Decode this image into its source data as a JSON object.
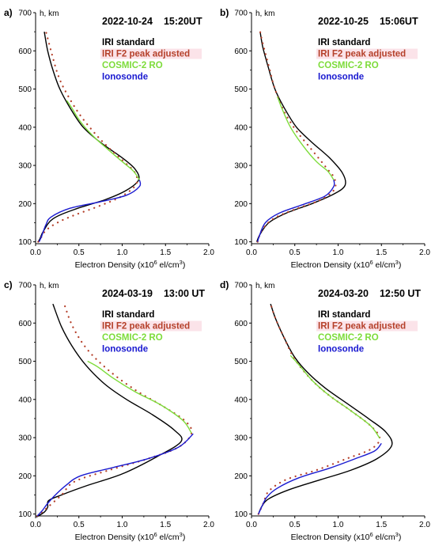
{
  "colors": {
    "iri_standard": "#000000",
    "iri_f2_adjusted": "#b5402a",
    "cosmic": "#7ddc3a",
    "ionosonde": "#1a1ad0"
  },
  "shared": {
    "x_label_prefix": "Electron Density",
    "x_label_unit": "(x10",
    "x_label_exp": "6",
    "x_label_unit2": " el/cm",
    "x_label_exp2": "3",
    "x_label_close": ")",
    "y_label": "h, km"
  },
  "chart_data": [
    {
      "type": "line",
      "panel_label": "a)",
      "title_date": "2022-10-24",
      "title_time": "15:20UT",
      "xlim": [
        0,
        2.0
      ],
      "ylim": [
        95,
        700
      ],
      "x_ticks": [
        "0.0",
        "0.5",
        "1.0",
        "1.5",
        "2.0"
      ],
      "y_ticks": [
        "100",
        "200",
        "300",
        "400",
        "500",
        "600",
        "700"
      ],
      "legend": [
        "IRI standard",
        "IRI F2 peak adjusted",
        "COSMIC-2 RO",
        "Ionosonde"
      ],
      "series": [
        {
          "name": "IRI standard",
          "style": "solid",
          "color": "#000000",
          "points": [
            [
              0.03,
              100
            ],
            [
              0.05,
              108
            ],
            [
              0.09,
              128
            ],
            [
              0.2,
              160
            ],
            [
              0.45,
              185
            ],
            [
              0.8,
              210
            ],
            [
              1.05,
              235
            ],
            [
              1.19,
              262
            ],
            [
              1.15,
              290
            ],
            [
              1.0,
              320
            ],
            [
              0.75,
              360
            ],
            [
              0.55,
              400
            ],
            [
              0.4,
              450
            ],
            [
              0.28,
              500
            ],
            [
              0.2,
              550
            ],
            [
              0.14,
              600
            ],
            [
              0.1,
              650
            ]
          ]
        },
        {
          "name": "IRI F2 peak adjusted",
          "style": "dotted",
          "color": "#b5402a",
          "points": [
            [
              0.03,
              100
            ],
            [
              0.06,
              110
            ],
            [
              0.12,
              130
            ],
            [
              0.25,
              150
            ],
            [
              0.45,
              170
            ],
            [
              0.75,
              195
            ],
            [
              1.0,
              220
            ],
            [
              1.16,
              250
            ],
            [
              1.15,
              280
            ],
            [
              1.02,
              310
            ],
            [
              0.85,
              345
            ],
            [
              0.7,
              380
            ],
            [
              0.52,
              430
            ],
            [
              0.38,
              480
            ],
            [
              0.27,
              530
            ],
            [
              0.19,
              590
            ],
            [
              0.12,
              650
            ]
          ]
        },
        {
          "name": "COSMIC-2 RO",
          "style": "solid",
          "color": "#7ddc3a",
          "points": [
            [
              1.2,
              262
            ],
            [
              1.13,
              285
            ],
            [
              1.0,
              310
            ],
            [
              0.82,
              345
            ],
            [
              0.65,
              380
            ],
            [
              0.5,
              420
            ],
            [
              0.42,
              450
            ],
            [
              0.36,
              470
            ]
          ]
        },
        {
          "name": "Ionosonde",
          "style": "solid",
          "color": "#1a1ad0",
          "points": [
            [
              0.04,
              100
            ],
            [
              0.07,
              115
            ],
            [
              0.12,
              145
            ],
            [
              0.18,
              165
            ],
            [
              0.4,
              188
            ],
            [
              0.75,
              205
            ],
            [
              1.05,
              222
            ],
            [
              1.2,
              245
            ],
            [
              1.2,
              262
            ]
          ]
        }
      ]
    },
    {
      "type": "line",
      "panel_label": "b)",
      "title_date": "2022-10-25",
      "title_time": "15:06UT",
      "xlim": [
        0,
        2.0
      ],
      "ylim": [
        95,
        700
      ],
      "x_ticks": [
        "0.0",
        "0.5",
        "1.0",
        "1.5",
        "2.0"
      ],
      "y_ticks": [
        "100",
        "200",
        "300",
        "400",
        "500",
        "600",
        "700"
      ],
      "legend": [
        "IRI standard",
        "IRI F2 peak adjusted",
        "COSMIC-2 RO",
        "Ionosonde"
      ],
      "series": [
        {
          "name": "IRI standard",
          "style": "solid",
          "color": "#000000",
          "points": [
            [
              0.06,
              100
            ],
            [
              0.1,
              120
            ],
            [
              0.2,
              150
            ],
            [
              0.4,
              175
            ],
            [
              0.7,
              200
            ],
            [
              0.95,
              225
            ],
            [
              1.08,
              248
            ],
            [
              1.05,
              280
            ],
            [
              0.9,
              320
            ],
            [
              0.7,
              360
            ],
            [
              0.52,
              400
            ],
            [
              0.38,
              450
            ],
            [
              0.27,
              500
            ],
            [
              0.19,
              560
            ],
            [
              0.13,
              610
            ],
            [
              0.1,
              650
            ]
          ]
        },
        {
          "name": "IRI F2 peak adjusted",
          "style": "dotted",
          "color": "#b5402a",
          "points": [
            [
              0.07,
              100
            ],
            [
              0.12,
              130
            ],
            [
              0.25,
              160
            ],
            [
              0.5,
              185
            ],
            [
              0.78,
              208
            ],
            [
              0.95,
              235
            ],
            [
              0.96,
              265
            ],
            [
              0.86,
              295
            ],
            [
              0.7,
              340
            ],
            [
              0.52,
              390
            ],
            [
              0.38,
              440
            ],
            [
              0.27,
              500
            ],
            [
              0.2,
              560
            ],
            [
              0.13,
              620
            ],
            [
              0.1,
              650
            ]
          ]
        },
        {
          "name": "COSMIC-2 RO",
          "style": "solid",
          "color": "#7ddc3a",
          "points": [
            [
              0.95,
              262
            ],
            [
              0.88,
              285
            ],
            [
              0.75,
              310
            ],
            [
              0.6,
              350
            ],
            [
              0.45,
              400
            ],
            [
              0.35,
              450
            ],
            [
              0.3,
              480
            ]
          ]
        },
        {
          "name": "Ionosonde",
          "style": "solid",
          "color": "#1a1ad0",
          "points": [
            [
              0.07,
              100
            ],
            [
              0.09,
              115
            ],
            [
              0.16,
              150
            ],
            [
              0.32,
              175
            ],
            [
              0.6,
              198
            ],
            [
              0.85,
              220
            ],
            [
              0.95,
              245
            ],
            [
              0.95,
              262
            ]
          ]
        }
      ]
    },
    {
      "type": "line",
      "panel_label": "c)",
      "title_date": "2024-03-19",
      "title_time": "13:00 UT",
      "xlim": [
        0,
        2.0
      ],
      "ylim": [
        95,
        700
      ],
      "x_ticks": [
        "0.0",
        "0.5",
        "1.0",
        "1.5",
        "2.0"
      ],
      "y_ticks": [
        "100",
        "200",
        "300",
        "400",
        "500",
        "600",
        "700"
      ],
      "legend": [
        "IRI standard",
        "IRI F2 peak adjusted",
        "COSMIC-2 RO",
        "Ionosonde"
      ],
      "series": [
        {
          "name": "IRI standard",
          "style": "solid",
          "color": "#000000",
          "points": [
            [
              0.01,
              92
            ],
            [
              0.1,
              105
            ],
            [
              0.14,
              118
            ],
            [
              0.15,
              135
            ],
            [
              0.3,
              150
            ],
            [
              0.6,
              175
            ],
            [
              1.0,
              205
            ],
            [
              1.4,
              250
            ],
            [
              1.68,
              290
            ],
            [
              1.6,
              320
            ],
            [
              1.35,
              360
            ],
            [
              1.05,
              400
            ],
            [
              0.8,
              440
            ],
            [
              0.58,
              490
            ],
            [
              0.42,
              540
            ],
            [
              0.3,
              590
            ],
            [
              0.2,
              650
            ]
          ]
        },
        {
          "name": "IRI F2 peak adjusted",
          "style": "dotted",
          "color": "#b5402a",
          "points": [
            [
              0.02,
              95
            ],
            [
              0.1,
              110
            ],
            [
              0.3,
              150
            ],
            [
              0.45,
              185
            ],
            [
              0.85,
              215
            ],
            [
              1.3,
              245
            ],
            [
              1.65,
              275
            ],
            [
              1.8,
              312
            ],
            [
              1.72,
              345
            ],
            [
              1.45,
              385
            ],
            [
              1.15,
              425
            ],
            [
              0.85,
              475
            ],
            [
              0.6,
              530
            ],
            [
              0.43,
              590
            ],
            [
              0.33,
              650
            ]
          ]
        },
        {
          "name": "COSMIC-2 RO",
          "style": "solid",
          "color": "#7ddc3a",
          "points": [
            [
              1.8,
              312
            ],
            [
              1.7,
              345
            ],
            [
              1.45,
              385
            ],
            [
              1.15,
              420
            ],
            [
              0.9,
              455
            ],
            [
              0.72,
              485
            ],
            [
              0.6,
              500
            ]
          ]
        },
        {
          "name": "Ionosonde",
          "style": "solid",
          "color": "#1a1ad0",
          "points": [
            [
              0.02,
              95
            ],
            [
              0.08,
              110
            ],
            [
              0.13,
              125
            ],
            [
              0.22,
              148
            ],
            [
              0.35,
              175
            ],
            [
              0.52,
              200
            ],
            [
              0.9,
              222
            ],
            [
              1.3,
              245
            ],
            [
              1.65,
              275
            ],
            [
              1.82,
              310
            ]
          ]
        }
      ]
    },
    {
      "type": "line",
      "panel_label": "d)",
      "title_date": "2024-03-20",
      "title_time": "12:50 UT",
      "xlim": [
        0,
        2.0
      ],
      "ylim": [
        95,
        700
      ],
      "x_ticks": [
        "0.0",
        "0.5",
        "1.0",
        "1.5",
        "2.0"
      ],
      "y_ticks": [
        "100",
        "200",
        "300",
        "400",
        "500",
        "600",
        "700"
      ],
      "legend": [
        "IRI standard",
        "IRI F2 peak adjusted",
        "COSMIC-2 RO",
        "Ionosonde"
      ],
      "series": [
        {
          "name": "IRI standard",
          "style": "solid",
          "color": "#000000",
          "points": [
            [
              0.08,
              100
            ],
            [
              0.12,
              120
            ],
            [
              0.2,
              140
            ],
            [
              0.45,
              165
            ],
            [
              0.8,
              190
            ],
            [
              1.15,
              215
            ],
            [
              1.45,
              245
            ],
            [
              1.62,
              280
            ],
            [
              1.55,
              315
            ],
            [
              1.35,
              350
            ],
            [
              1.1,
              390
            ],
            [
              0.85,
              430
            ],
            [
              0.65,
              470
            ],
            [
              0.5,
              510
            ],
            [
              0.38,
              560
            ],
            [
              0.28,
              610
            ],
            [
              0.22,
              650
            ]
          ]
        },
        {
          "name": "IRI F2 peak adjusted",
          "style": "dotted",
          "color": "#b5402a",
          "points": [
            [
              0.08,
              100
            ],
            [
              0.14,
              130
            ],
            [
              0.2,
              160
            ],
            [
              0.4,
              190
            ],
            [
              0.75,
              215
            ],
            [
              1.1,
              245
            ],
            [
              1.38,
              270
            ],
            [
              1.48,
              298
            ],
            [
              1.38,
              330
            ],
            [
              1.15,
              370
            ],
            [
              0.9,
              410
            ],
            [
              0.7,
              450
            ],
            [
              0.5,
              505
            ],
            [
              0.38,
              560
            ],
            [
              0.28,
              610
            ],
            [
              0.22,
              650
            ]
          ]
        },
        {
          "name": "COSMIC-2 RO",
          "style": "solid",
          "color": "#7ddc3a",
          "points": [
            [
              1.48,
              298
            ],
            [
              1.38,
              330
            ],
            [
              1.15,
              370
            ],
            [
              0.9,
              410
            ],
            [
              0.7,
              450
            ],
            [
              0.55,
              490
            ],
            [
              0.45,
              515
            ]
          ]
        },
        {
          "name": "Ionosonde",
          "style": "solid",
          "color": "#1a1ad0",
          "points": [
            [
              0.08,
              100
            ],
            [
              0.12,
              120
            ],
            [
              0.18,
              145
            ],
            [
              0.3,
              168
            ],
            [
              0.55,
              195
            ],
            [
              0.9,
              220
            ],
            [
              1.2,
              245
            ],
            [
              1.42,
              265
            ],
            [
              1.5,
              285
            ]
          ]
        }
      ]
    }
  ]
}
